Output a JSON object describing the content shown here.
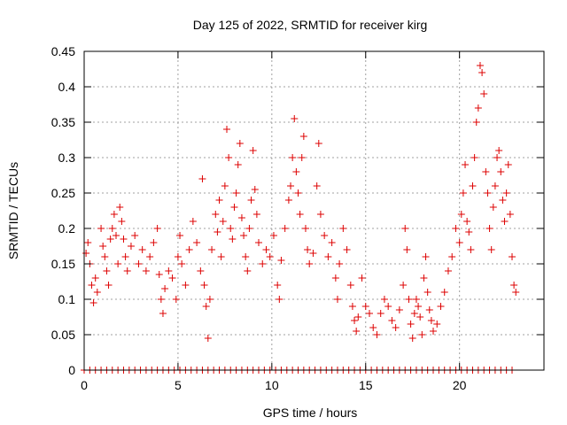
{
  "chart_data": {
    "type": "scatter",
    "title": "Day 125 of 2022, SRMTID for receiver kirg",
    "xlabel": "GPS time / hours",
    "ylabel": "SRMTID / TECUs",
    "xlim": [
      0,
      24.5
    ],
    "ylim": [
      0,
      0.45
    ],
    "xticks": [
      0,
      5,
      10,
      15,
      20
    ],
    "yticks": [
      0,
      0.05,
      0.1,
      0.15,
      0.2,
      0.25,
      0.3,
      0.35,
      0.4,
      0.45
    ],
    "ytick_labels": [
      "0",
      "0.05",
      "0.1",
      "0.15",
      "0.2",
      "0.25",
      "0.3",
      "0.35",
      "0.4",
      "0.45"
    ],
    "xtick_labels": [
      "0",
      "5",
      "10",
      "15",
      "20"
    ],
    "grid": true,
    "marker": "+",
    "series": [
      {
        "name": "SRMTID",
        "color": "#dd0000",
        "points": [
          [
            0.1,
            0.165
          ],
          [
            0.2,
            0.18
          ],
          [
            0.3,
            0.15
          ],
          [
            0.4,
            0.12
          ],
          [
            0.5,
            0.095
          ],
          [
            0.6,
            0.13
          ],
          [
            0.7,
            0.11
          ],
          [
            0.9,
            0.2
          ],
          [
            1.0,
            0.175
          ],
          [
            1.1,
            0.16
          ],
          [
            1.2,
            0.14
          ],
          [
            1.3,
            0.12
          ],
          [
            1.4,
            0.185
          ],
          [
            1.5,
            0.2
          ],
          [
            1.6,
            0.22
          ],
          [
            1.7,
            0.19
          ],
          [
            1.8,
            0.15
          ],
          [
            1.9,
            0.23
          ],
          [
            2.0,
            0.21
          ],
          [
            2.1,
            0.185
          ],
          [
            2.2,
            0.16
          ],
          [
            2.3,
            0.14
          ],
          [
            2.5,
            0.175
          ],
          [
            2.7,
            0.19
          ],
          [
            2.9,
            0.15
          ],
          [
            3.1,
            0.17
          ],
          [
            3.3,
            0.14
          ],
          [
            3.5,
            0.16
          ],
          [
            3.7,
            0.18
          ],
          [
            3.9,
            0.2
          ],
          [
            4.0,
            0.135
          ],
          [
            4.1,
            0.1
          ],
          [
            4.2,
            0.08
          ],
          [
            4.3,
            0.115
          ],
          [
            4.5,
            0.14
          ],
          [
            4.7,
            0.13
          ],
          [
            4.9,
            0.1
          ],
          [
            5.0,
            0.16
          ],
          [
            5.1,
            0.19
          ],
          [
            5.2,
            0.15
          ],
          [
            5.4,
            0.12
          ],
          [
            5.6,
            0.17
          ],
          [
            5.8,
            0.21
          ],
          [
            6.0,
            0.18
          ],
          [
            6.2,
            0.14
          ],
          [
            6.3,
            0.27
          ],
          [
            6.4,
            0.12
          ],
          [
            6.5,
            0.09
          ],
          [
            6.6,
            0.045
          ],
          [
            6.7,
            0.1
          ],
          [
            6.8,
            0.17
          ],
          [
            7.0,
            0.22
          ],
          [
            7.1,
            0.195
          ],
          [
            7.2,
            0.24
          ],
          [
            7.3,
            0.16
          ],
          [
            7.4,
            0.21
          ],
          [
            7.5,
            0.26
          ],
          [
            7.6,
            0.34
          ],
          [
            7.7,
            0.3
          ],
          [
            7.8,
            0.2
          ],
          [
            7.9,
            0.185
          ],
          [
            8.0,
            0.23
          ],
          [
            8.1,
            0.25
          ],
          [
            8.2,
            0.29
          ],
          [
            8.3,
            0.32
          ],
          [
            8.4,
            0.215
          ],
          [
            8.5,
            0.19
          ],
          [
            8.6,
            0.16
          ],
          [
            8.7,
            0.14
          ],
          [
            8.8,
            0.2
          ],
          [
            8.9,
            0.24
          ],
          [
            9.0,
            0.31
          ],
          [
            9.1,
            0.255
          ],
          [
            9.2,
            0.22
          ],
          [
            9.3,
            0.18
          ],
          [
            9.5,
            0.15
          ],
          [
            9.7,
            0.17
          ],
          [
            9.9,
            0.16
          ],
          [
            10.1,
            0.19
          ],
          [
            10.3,
            0.12
          ],
          [
            10.4,
            0.1
          ],
          [
            10.5,
            0.155
          ],
          [
            10.7,
            0.2
          ],
          [
            10.9,
            0.24
          ],
          [
            11.0,
            0.26
          ],
          [
            11.1,
            0.3
          ],
          [
            11.2,
            0.355
          ],
          [
            11.3,
            0.28
          ],
          [
            11.4,
            0.25
          ],
          [
            11.5,
            0.22
          ],
          [
            11.6,
            0.3
          ],
          [
            11.7,
            0.33
          ],
          [
            11.8,
            0.2
          ],
          [
            11.9,
            0.17
          ],
          [
            12.0,
            0.15
          ],
          [
            12.2,
            0.165
          ],
          [
            12.4,
            0.26
          ],
          [
            12.5,
            0.32
          ],
          [
            12.6,
            0.22
          ],
          [
            12.8,
            0.19
          ],
          [
            13.0,
            0.16
          ],
          [
            13.2,
            0.18
          ],
          [
            13.4,
            0.13
          ],
          [
            13.5,
            0.1
          ],
          [
            13.6,
            0.15
          ],
          [
            13.8,
            0.2
          ],
          [
            14.0,
            0.17
          ],
          [
            14.2,
            0.12
          ],
          [
            14.3,
            0.09
          ],
          [
            14.4,
            0.07
          ],
          [
            14.5,
            0.055
          ],
          [
            14.6,
            0.075
          ],
          [
            14.8,
            0.13
          ],
          [
            15.0,
            0.09
          ],
          [
            15.2,
            0.08
          ],
          [
            15.4,
            0.06
          ],
          [
            15.6,
            0.05
          ],
          [
            15.8,
            0.08
          ],
          [
            16.0,
            0.1
          ],
          [
            16.2,
            0.09
          ],
          [
            16.4,
            0.07
          ],
          [
            16.6,
            0.06
          ],
          [
            16.8,
            0.085
          ],
          [
            17.0,
            0.12
          ],
          [
            17.1,
            0.2
          ],
          [
            17.2,
            0.17
          ],
          [
            17.3,
            0.1
          ],
          [
            17.4,
            0.065
          ],
          [
            17.5,
            0.045
          ],
          [
            17.6,
            0.08
          ],
          [
            17.7,
            0.1
          ],
          [
            17.8,
            0.09
          ],
          [
            17.9,
            0.075
          ],
          [
            18.0,
            0.05
          ],
          [
            18.1,
            0.13
          ],
          [
            18.2,
            0.16
          ],
          [
            18.3,
            0.11
          ],
          [
            18.4,
            0.085
          ],
          [
            18.5,
            0.07
          ],
          [
            18.6,
            0.055
          ],
          [
            18.8,
            0.065
          ],
          [
            19.0,
            0.09
          ],
          [
            19.2,
            0.11
          ],
          [
            19.4,
            0.14
          ],
          [
            19.6,
            0.16
          ],
          [
            19.8,
            0.2
          ],
          [
            20.0,
            0.18
          ],
          [
            20.1,
            0.22
          ],
          [
            20.2,
            0.25
          ],
          [
            20.3,
            0.29
          ],
          [
            20.4,
            0.21
          ],
          [
            20.5,
            0.195
          ],
          [
            20.6,
            0.17
          ],
          [
            20.7,
            0.26
          ],
          [
            20.8,
            0.3
          ],
          [
            20.9,
            0.35
          ],
          [
            21.0,
            0.37
          ],
          [
            21.1,
            0.43
          ],
          [
            21.2,
            0.42
          ],
          [
            21.3,
            0.39
          ],
          [
            21.4,
            0.28
          ],
          [
            21.5,
            0.25
          ],
          [
            21.6,
            0.2
          ],
          [
            21.7,
            0.17
          ],
          [
            21.8,
            0.23
          ],
          [
            21.9,
            0.26
          ],
          [
            22.0,
            0.3
          ],
          [
            22.1,
            0.31
          ],
          [
            22.2,
            0.28
          ],
          [
            22.3,
            0.24
          ],
          [
            22.4,
            0.21
          ],
          [
            22.5,
            0.25
          ],
          [
            22.6,
            0.29
          ],
          [
            22.7,
            0.22
          ],
          [
            22.8,
            0.16
          ],
          [
            22.9,
            0.12
          ],
          [
            23.0,
            0.11
          ]
        ]
      }
    ],
    "zero_points_x": [
      0,
      0.3,
      0.6,
      0.9,
      1.2,
      1.5,
      1.8,
      2.1,
      2.4,
      2.7,
      3.0,
      3.3,
      3.6,
      3.9,
      4.2,
      4.5,
      4.8,
      5.1,
      5.4,
      5.7,
      6.0,
      6.3,
      6.6,
      6.9,
      7.2,
      7.5,
      7.8,
      8.1,
      8.4,
      8.7,
      9.0,
      9.3,
      9.6,
      9.9,
      10.2,
      10.5,
      10.8,
      11.1,
      11.4,
      11.7,
      12.0,
      12.3,
      12.6,
      12.9,
      13.2,
      13.5,
      13.8,
      14.1,
      14.4,
      14.7,
      15.0,
      15.3,
      15.6,
      15.9,
      16.2,
      16.5,
      16.8,
      17.1,
      17.4,
      17.7,
      18.0,
      18.3,
      18.6,
      18.9,
      19.2,
      19.5,
      19.8,
      20.1,
      20.4,
      20.7,
      21.0,
      21.3,
      21.6,
      21.9,
      22.2,
      22.5,
      22.8
    ]
  }
}
